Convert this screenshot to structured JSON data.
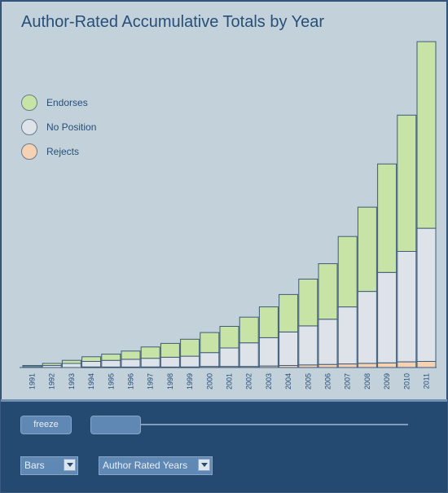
{
  "chart_data": {
    "type": "bar",
    "title": "Author-Rated Accumulative Totals by Year",
    "xlabel": "",
    "ylabel": "",
    "stacked": true,
    "categories": [
      "1991",
      "1992",
      "1993",
      "1994",
      "1995",
      "1996",
      "1997",
      "1998",
      "1999",
      "2000",
      "2001",
      "2002",
      "2003",
      "2004",
      "2005",
      "2006",
      "2007",
      "2008",
      "2009",
      "2010",
      "2011"
    ],
    "series": [
      {
        "name": "Rejects",
        "color": "#f6d2b4",
        "values": [
          0,
          0,
          0,
          1,
          1,
          1,
          1,
          1,
          1,
          2,
          2,
          2,
          3,
          4,
          5,
          6,
          7,
          8,
          9,
          11,
          12
        ]
      },
      {
        "name": "No Position",
        "color": "#dde3e8",
        "values": [
          2,
          4,
          8,
          11,
          13,
          15,
          17,
          19,
          21,
          27,
          36,
          46,
          55,
          65,
          76,
          88,
          111,
          140,
          176,
          215,
          259
        ]
      },
      {
        "name": "Endorses",
        "color": "#c7e4a6",
        "values": [
          2,
          4,
          6,
          9,
          12,
          16,
          22,
          27,
          33,
          39,
          42,
          50,
          60,
          73,
          91,
          108,
          137,
          164,
          211,
          265,
          363
        ]
      }
    ],
    "ylim": [
      0,
      650
    ],
    "grid": false,
    "legend_position": "top-left"
  },
  "legend": {
    "items": [
      {
        "label": "Endorses",
        "color": "#c7e4a6"
      },
      {
        "label": "No Position",
        "color": "#dde3e8"
      },
      {
        "label": "Rejects",
        "color": "#f6d2b4"
      }
    ]
  },
  "controls": {
    "freeze_label": "freeze",
    "chart_type_value": "Bars",
    "data_view_value": "Author Rated Years"
  }
}
